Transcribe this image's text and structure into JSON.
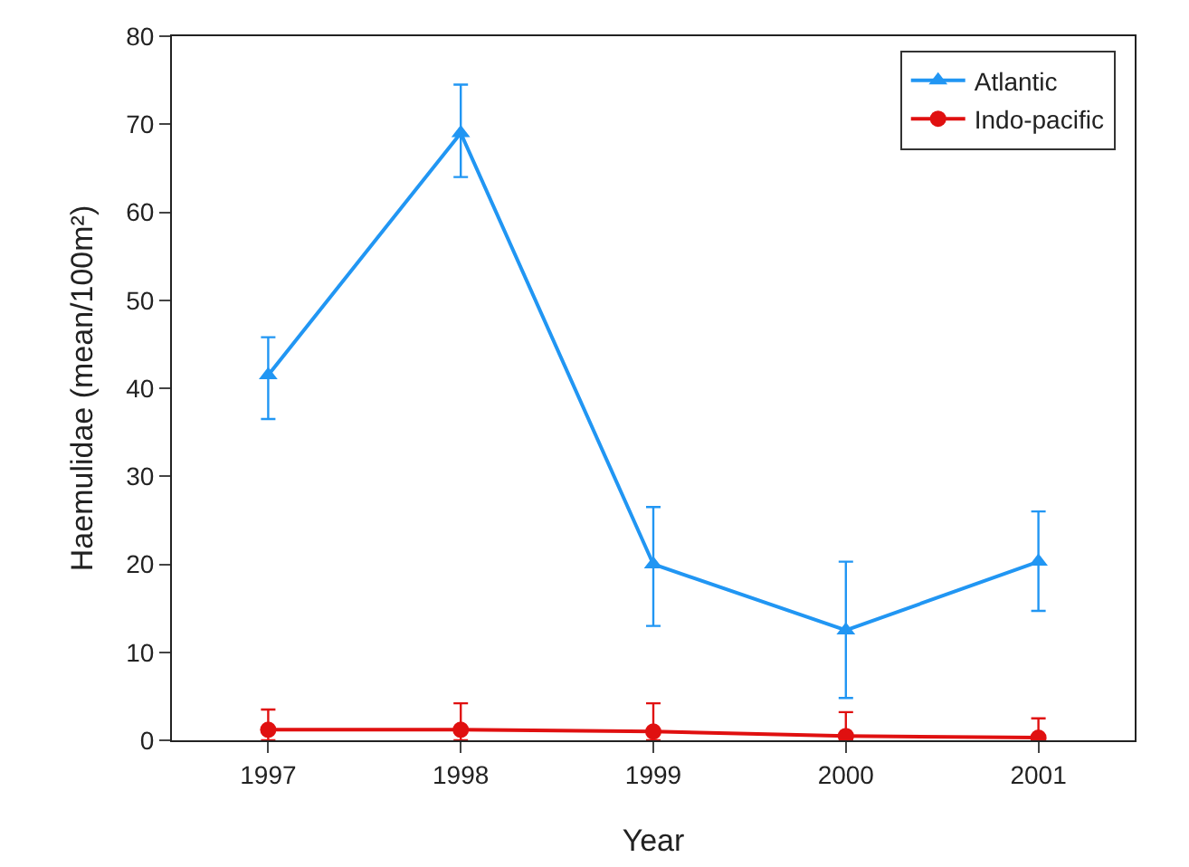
{
  "chart_data": {
    "type": "line",
    "xlabel": "Year",
    "ylabel": "Haemulidae (mean/100m²)",
    "categories": [
      "1997",
      "1998",
      "1999",
      "2000",
      "2001"
    ],
    "series": [
      {
        "name": "Atlantic",
        "color": "#2196f3",
        "marker": "triangle",
        "values": [
          41.5,
          69,
          20,
          12.5,
          20.3
        ],
        "errors": [
          [
            36.5,
            45.8
          ],
          [
            64,
            74.5
          ],
          [
            13,
            26.5
          ],
          [
            4.8,
            20.3
          ],
          [
            14.7,
            26
          ]
        ]
      },
      {
        "name": "Indo-pacific",
        "color": "#e01010",
        "marker": "circle",
        "values": [
          1.2,
          1.2,
          1,
          0.5,
          0.3
        ],
        "errors": [
          [
            0,
            3.5
          ],
          [
            0,
            4.2
          ],
          [
            0,
            4.2
          ],
          [
            0,
            3.2
          ],
          [
            0,
            2.5
          ]
        ]
      }
    ],
    "ylim": [
      0,
      80
    ],
    "yticks": [
      0,
      10,
      20,
      30,
      40,
      50,
      60,
      70,
      80
    ],
    "grid": false,
    "legend": "top right",
    "line_style": "solid"
  }
}
